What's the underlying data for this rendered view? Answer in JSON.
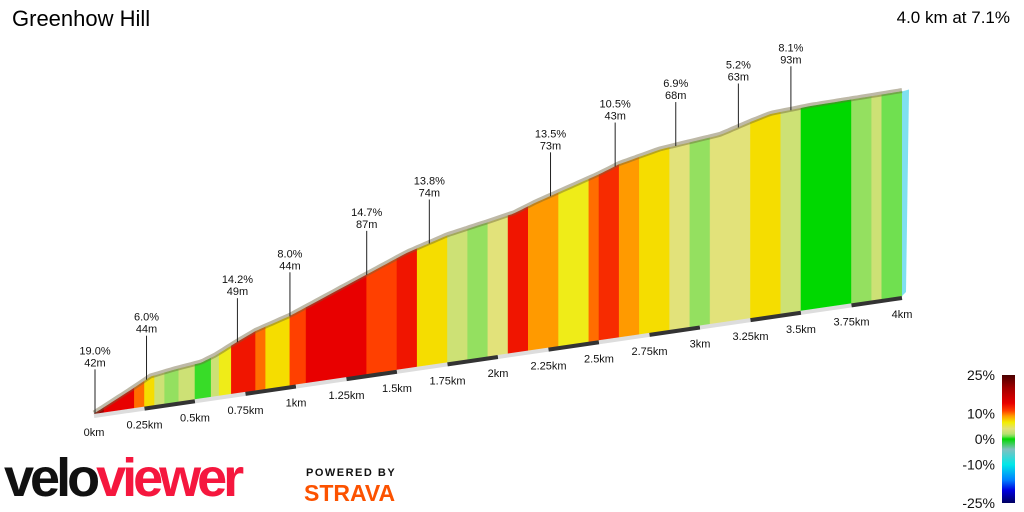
{
  "header": {
    "title": "Greenhow Hill",
    "summary": "4.0 km at 7.1%"
  },
  "branding": {
    "logo_part1": "velo",
    "logo_part2": "viewer",
    "powered_by": "POWERED BY",
    "strava": "STRAVA",
    "logo_colors": [
      "#111111",
      "#f5173e"
    ],
    "strava_color": "#fc5200"
  },
  "chart_data": {
    "type": "area",
    "title": "",
    "xlabel": "",
    "ylabel": "",
    "x_unit": "km",
    "xlim": [
      0,
      4
    ],
    "x_ticks": [
      {
        "value": 0,
        "label": "0km"
      },
      {
        "value": 0.25,
        "label": "0.25km"
      },
      {
        "value": 0.5,
        "label": "0.5km"
      },
      {
        "value": 0.75,
        "label": "0.75km"
      },
      {
        "value": 1,
        "label": "1km"
      },
      {
        "value": 1.25,
        "label": "1.25km"
      },
      {
        "value": 1.5,
        "label": "1.5km"
      },
      {
        "value": 1.75,
        "label": "1.75km"
      },
      {
        "value": 2,
        "label": "2km"
      },
      {
        "value": 2.25,
        "label": "2.25km"
      },
      {
        "value": 2.5,
        "label": "2.5km"
      },
      {
        "value": 2.75,
        "label": "2.75km"
      },
      {
        "value": 3,
        "label": "3km"
      },
      {
        "value": 3.25,
        "label": "3.25km"
      },
      {
        "value": 3.5,
        "label": "3.5km"
      },
      {
        "value": 3.75,
        "label": "3.75km"
      },
      {
        "value": 4,
        "label": "4km"
      }
    ],
    "elevation_gain_m": {
      "km": [
        0,
        0.1,
        0.2,
        0.28,
        0.4,
        0.53,
        0.6,
        0.72,
        0.8,
        0.97,
        1.26,
        1.55,
        1.75,
        1.95,
        2.08,
        2.18,
        2.5,
        2.6,
        2.8,
        3.1,
        3.25,
        3.35,
        3.55,
        3.8,
        4.0
      ],
      "gain": [
        0,
        14,
        28,
        40,
        45,
        49,
        56,
        72,
        82,
        96,
        128,
        160,
        176,
        186,
        193,
        203,
        230,
        240,
        252,
        260,
        272,
        279,
        282,
        283,
        284
      ]
    },
    "gradient_segments": [
      {
        "from": 0,
        "to": 0.05,
        "gradient": 20
      },
      {
        "from": 0.05,
        "to": 0.2,
        "gradient": 14
      },
      {
        "from": 0.2,
        "to": 0.25,
        "gradient": 10
      },
      {
        "from": 0.25,
        "to": 0.3,
        "gradient": 7
      },
      {
        "from": 0.3,
        "to": 0.35,
        "gradient": 3
      },
      {
        "from": 0.35,
        "to": 0.42,
        "gradient": 1.5
      },
      {
        "from": 0.42,
        "to": 0.5,
        "gradient": 3
      },
      {
        "from": 0.5,
        "to": 0.58,
        "gradient": 0.5
      },
      {
        "from": 0.58,
        "to": 0.62,
        "gradient": 3
      },
      {
        "from": 0.62,
        "to": 0.68,
        "gradient": 6
      },
      {
        "from": 0.68,
        "to": 0.8,
        "gradient": 13
      },
      {
        "from": 0.8,
        "to": 0.85,
        "gradient": 10
      },
      {
        "from": 0.85,
        "to": 0.97,
        "gradient": 7
      },
      {
        "from": 0.97,
        "to": 1.05,
        "gradient": 11
      },
      {
        "from": 1.05,
        "to": 1.35,
        "gradient": 14
      },
      {
        "from": 1.35,
        "to": 1.5,
        "gradient": 11
      },
      {
        "from": 1.5,
        "to": 1.6,
        "gradient": 13
      },
      {
        "from": 1.6,
        "to": 1.75,
        "gradient": 7
      },
      {
        "from": 1.75,
        "to": 1.85,
        "gradient": 3
      },
      {
        "from": 1.85,
        "to": 1.95,
        "gradient": 1.5
      },
      {
        "from": 1.95,
        "to": 2.05,
        "gradient": 4
      },
      {
        "from": 2.05,
        "to": 2.15,
        "gradient": 13
      },
      {
        "from": 2.15,
        "to": 2.3,
        "gradient": 9
      },
      {
        "from": 2.3,
        "to": 2.45,
        "gradient": 6
      },
      {
        "from": 2.45,
        "to": 2.5,
        "gradient": 10
      },
      {
        "from": 2.5,
        "to": 2.6,
        "gradient": 12
      },
      {
        "from": 2.6,
        "to": 2.7,
        "gradient": 9
      },
      {
        "from": 2.7,
        "to": 2.85,
        "gradient": 7
      },
      {
        "from": 2.85,
        "to": 2.95,
        "gradient": 4
      },
      {
        "from": 2.95,
        "to": 3.05,
        "gradient": 1.5
      },
      {
        "from": 3.05,
        "to": 3.25,
        "gradient": 4
      },
      {
        "from": 3.25,
        "to": 3.4,
        "gradient": 7
      },
      {
        "from": 3.4,
        "to": 3.5,
        "gradient": 3
      },
      {
        "from": 3.5,
        "to": 3.75,
        "gradient": 0
      },
      {
        "from": 3.75,
        "to": 3.85,
        "gradient": 1.5
      },
      {
        "from": 3.85,
        "to": 3.9,
        "gradient": 3
      },
      {
        "from": 3.9,
        "to": 4.0,
        "gradient": 1
      }
    ],
    "annotations": [
      {
        "km": 0.005,
        "gradient": "19.0%",
        "length": "42m"
      },
      {
        "km": 0.26,
        "gradient": "6.0%",
        "length": "44m"
      },
      {
        "km": 0.71,
        "gradient": "14.2%",
        "length": "49m"
      },
      {
        "km": 0.97,
        "gradient": "8.0%",
        "length": "44m"
      },
      {
        "km": 1.35,
        "gradient": "14.7%",
        "length": "87m"
      },
      {
        "km": 1.66,
        "gradient": "13.8%",
        "length": "74m"
      },
      {
        "km": 2.26,
        "gradient": "13.5%",
        "length": "73m"
      },
      {
        "km": 2.58,
        "gradient": "10.5%",
        "length": "43m"
      },
      {
        "km": 2.88,
        "gradient": "6.9%",
        "length": "68m"
      },
      {
        "km": 3.19,
        "gradient": "5.2%",
        "length": "63m"
      },
      {
        "km": 3.45,
        "gradient": "8.1%",
        "length": "93m"
      }
    ],
    "color_scale": {
      "labels": [
        "25%",
        "10%",
        "0%",
        "-10%",
        "-25%"
      ],
      "values": [
        25,
        10,
        0,
        -10,
        -25
      ],
      "stops": [
        {
          "v": 25,
          "c": "#4a0000"
        },
        {
          "v": 20,
          "c": "#a00000"
        },
        {
          "v": 14,
          "c": "#e80000"
        },
        {
          "v": 11,
          "c": "#ff4000"
        },
        {
          "v": 9,
          "c": "#ff9a00"
        },
        {
          "v": 6.5,
          "c": "#f2ee00"
        },
        {
          "v": 4,
          "c": "#e2e27a"
        },
        {
          "v": 2,
          "c": "#b8e070"
        },
        {
          "v": 1,
          "c": "#70e050"
        },
        {
          "v": 0,
          "c": "#00d800"
        },
        {
          "v": -4,
          "c": "#80c0c0"
        },
        {
          "v": -10,
          "c": "#00e8e8"
        },
        {
          "v": -16,
          "c": "#0080ff"
        },
        {
          "v": -20,
          "c": "#0000e0"
        },
        {
          "v": -25,
          "c": "#000060"
        }
      ]
    }
  }
}
